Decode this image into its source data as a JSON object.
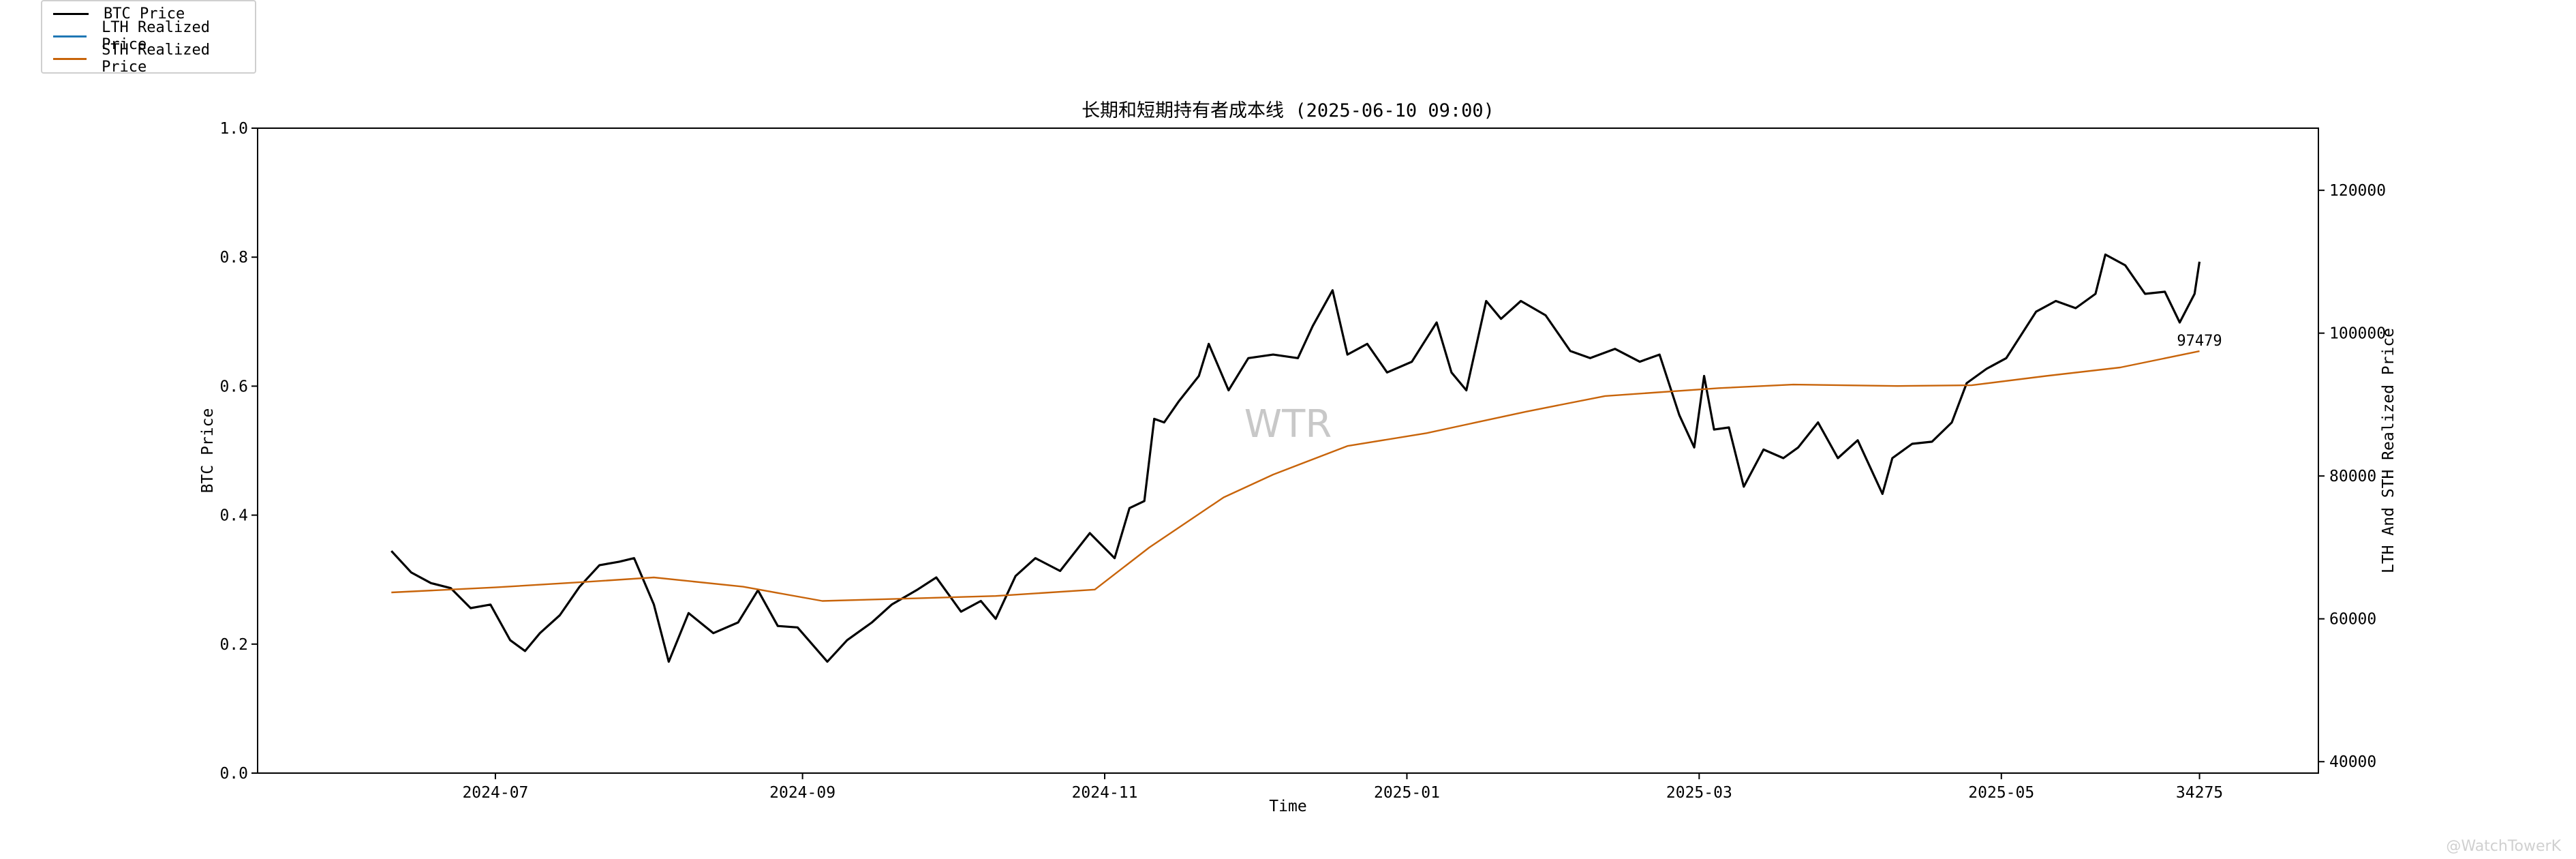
{
  "chart_data": {
    "type": "line",
    "title": "长期和短期持有者成本线 (2025-06-10 09:00)",
    "xlabel": "Time",
    "ylabel_left": "BTC Price",
    "ylabel_right": "LTH And STH Realized Price",
    "left_axis": {
      "ylim": [
        0,
        1.0
      ],
      "ticks": [
        "0.0",
        "0.2",
        "0.4",
        "0.6",
        "0.8",
        "1.0"
      ]
    },
    "right_axis": {
      "ylim": [
        38400,
        128700
      ],
      "ticks": [
        40000,
        60000,
        80000,
        100000,
        120000
      ]
    },
    "x_ticks": [
      "2024-07",
      "2024-09",
      "2024-11",
      "2025-01",
      "2025-03",
      "2025-05",
      "34275"
    ],
    "x_tick_dates": [
      "2024-07-01",
      "2024-09-01",
      "2024-11-01",
      "2025-01-01",
      "2025-03-01",
      "2025-05-01",
      "2025-06-10"
    ],
    "xlim": [
      "2024-05-14",
      "2025-07-04"
    ],
    "grid": false,
    "legend_placement": "top-left",
    "watermark_center": "WTR",
    "watermark_corner": "@WatchTowerK",
    "last_value_label": "97479",
    "series": [
      {
        "name": "BTC Price",
        "color": "#000000",
        "axis": "right",
        "points": [
          [
            "2024-06-10",
            69500
          ],
          [
            "2024-06-14",
            66500
          ],
          [
            "2024-06-18",
            65000
          ],
          [
            "2024-06-22",
            64300
          ],
          [
            "2024-06-26",
            61500
          ],
          [
            "2024-06-30",
            62000
          ],
          [
            "2024-07-04",
            57000
          ],
          [
            "2024-07-07",
            55500
          ],
          [
            "2024-07-10",
            58000
          ],
          [
            "2024-07-14",
            60500
          ],
          [
            "2024-07-18",
            64500
          ],
          [
            "2024-07-22",
            67500
          ],
          [
            "2024-07-26",
            68000
          ],
          [
            "2024-07-29",
            68500
          ],
          [
            "2024-08-02",
            62000
          ],
          [
            "2024-08-05",
            54000
          ],
          [
            "2024-08-09",
            60800
          ],
          [
            "2024-08-14",
            58000
          ],
          [
            "2024-08-19",
            59500
          ],
          [
            "2024-08-23",
            64000
          ],
          [
            "2024-08-27",
            59000
          ],
          [
            "2024-08-31",
            58800
          ],
          [
            "2024-09-06",
            54000
          ],
          [
            "2024-09-10",
            57000
          ],
          [
            "2024-09-15",
            59500
          ],
          [
            "2024-09-19",
            62000
          ],
          [
            "2024-09-24",
            64000
          ],
          [
            "2024-09-28",
            65800
          ],
          [
            "2024-10-03",
            61000
          ],
          [
            "2024-10-07",
            62500
          ],
          [
            "2024-10-10",
            60000
          ],
          [
            "2024-10-14",
            66000
          ],
          [
            "2024-10-18",
            68500
          ],
          [
            "2024-10-23",
            66700
          ],
          [
            "2024-10-29",
            72000
          ],
          [
            "2024-11-03",
            68500
          ],
          [
            "2024-11-06",
            75500
          ],
          [
            "2024-11-09",
            76500
          ],
          [
            "2024-11-11",
            88000
          ],
          [
            "2024-11-13",
            87500
          ],
          [
            "2024-11-16",
            90500
          ],
          [
            "2024-11-20",
            94000
          ],
          [
            "2024-11-22",
            98500
          ],
          [
            "2024-11-26",
            92000
          ],
          [
            "2024-11-30",
            96500
          ],
          [
            "2024-12-05",
            97000
          ],
          [
            "2024-12-10",
            96500
          ],
          [
            "2024-12-13",
            101000
          ],
          [
            "2024-12-17",
            106000
          ],
          [
            "2024-12-20",
            97000
          ],
          [
            "2024-12-24",
            98500
          ],
          [
            "2024-12-28",
            94500
          ],
          [
            "2025-01-02",
            96000
          ],
          [
            "2025-01-07",
            101500
          ],
          [
            "2025-01-10",
            94500
          ],
          [
            "2025-01-13",
            92000
          ],
          [
            "2025-01-17",
            104500
          ],
          [
            "2025-01-20",
            102000
          ],
          [
            "2025-01-24",
            104500
          ],
          [
            "2025-01-29",
            102500
          ],
          [
            "2025-02-03",
            97500
          ],
          [
            "2025-02-07",
            96500
          ],
          [
            "2025-02-12",
            97800
          ],
          [
            "2025-02-17",
            96000
          ],
          [
            "2025-02-21",
            97000
          ],
          [
            "2025-02-25",
            88500
          ],
          [
            "2025-02-28",
            84000
          ],
          [
            "2025-03-02",
            94000
          ],
          [
            "2025-03-04",
            86500
          ],
          [
            "2025-03-07",
            86800
          ],
          [
            "2025-03-10",
            78500
          ],
          [
            "2025-03-14",
            83700
          ],
          [
            "2025-03-18",
            82500
          ],
          [
            "2025-03-21",
            84000
          ],
          [
            "2025-03-25",
            87500
          ],
          [
            "2025-03-29",
            82500
          ],
          [
            "2025-04-02",
            85000
          ],
          [
            "2025-04-07",
            77500
          ],
          [
            "2025-04-09",
            82500
          ],
          [
            "2025-04-13",
            84500
          ],
          [
            "2025-04-17",
            84800
          ],
          [
            "2025-04-21",
            87500
          ],
          [
            "2025-04-24",
            93000
          ],
          [
            "2025-04-28",
            95000
          ],
          [
            "2025-05-02",
            96500
          ],
          [
            "2025-05-08",
            103000
          ],
          [
            "2025-05-12",
            104500
          ],
          [
            "2025-05-16",
            103500
          ],
          [
            "2025-05-20",
            105500
          ],
          [
            "2025-05-22",
            111000
          ],
          [
            "2025-05-26",
            109500
          ],
          [
            "2025-05-30",
            105500
          ],
          [
            "2025-06-03",
            105800
          ],
          [
            "2025-06-06",
            101500
          ],
          [
            "2025-06-09",
            105500
          ],
          [
            "2025-06-10",
            110000
          ]
        ]
      },
      {
        "name": "LTH Realized Price",
        "color": "#1f77b4",
        "axis": "right",
        "points": []
      },
      {
        "name": "STH Realized Price",
        "color": "#c8640a",
        "axis": "right",
        "points": [
          [
            "2024-06-10",
            63700
          ],
          [
            "2024-07-01",
            64400
          ],
          [
            "2024-07-20",
            65200
          ],
          [
            "2024-08-02",
            65800
          ],
          [
            "2024-08-20",
            64500
          ],
          [
            "2024-09-05",
            62500
          ],
          [
            "2024-09-20",
            62800
          ],
          [
            "2024-10-10",
            63200
          ],
          [
            "2024-10-30",
            64100
          ],
          [
            "2024-11-10",
            70000
          ],
          [
            "2024-11-25",
            77000
          ],
          [
            "2024-12-05",
            80200
          ],
          [
            "2024-12-20",
            84200
          ],
          [
            "2025-01-05",
            86000
          ],
          [
            "2025-01-25",
            89000
          ],
          [
            "2025-02-10",
            91200
          ],
          [
            "2025-03-05",
            92300
          ],
          [
            "2025-03-20",
            92800
          ],
          [
            "2025-04-10",
            92600
          ],
          [
            "2025-04-25",
            92700
          ],
          [
            "2025-05-10",
            94000
          ],
          [
            "2025-05-25",
            95200
          ],
          [
            "2025-06-10",
            97479
          ]
        ]
      }
    ]
  }
}
